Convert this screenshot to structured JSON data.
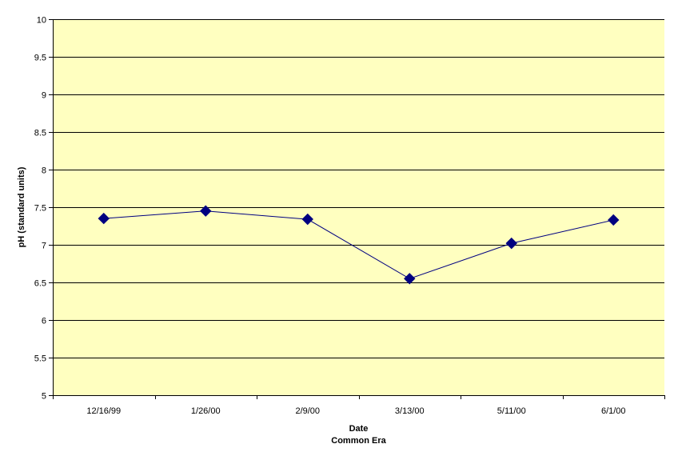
{
  "colors": {
    "plot_background": "#ffffc0",
    "gridline": "#000000",
    "series": "#000080"
  },
  "chart_data": {
    "type": "line",
    "categories": [
      "12/16/99",
      "1/26/00",
      "2/9/00",
      "3/13/00",
      "5/11/00",
      "6/1/00"
    ],
    "series": [
      {
        "values": [
          7.35,
          7.45,
          7.34,
          6.55,
          7.02,
          7.33
        ]
      }
    ],
    "xlabel": "Date",
    "xlabel_sub": "Common Era",
    "ylabel": "pH (standard units)",
    "ylim": [
      5,
      10
    ],
    "yticks": [
      "5",
      "5.5",
      "6",
      "6.5",
      "7",
      "7.5",
      "8",
      "8.5",
      "9",
      "9.5",
      "10"
    ],
    "grid": true,
    "marker": "diamond",
    "legend": "none"
  }
}
